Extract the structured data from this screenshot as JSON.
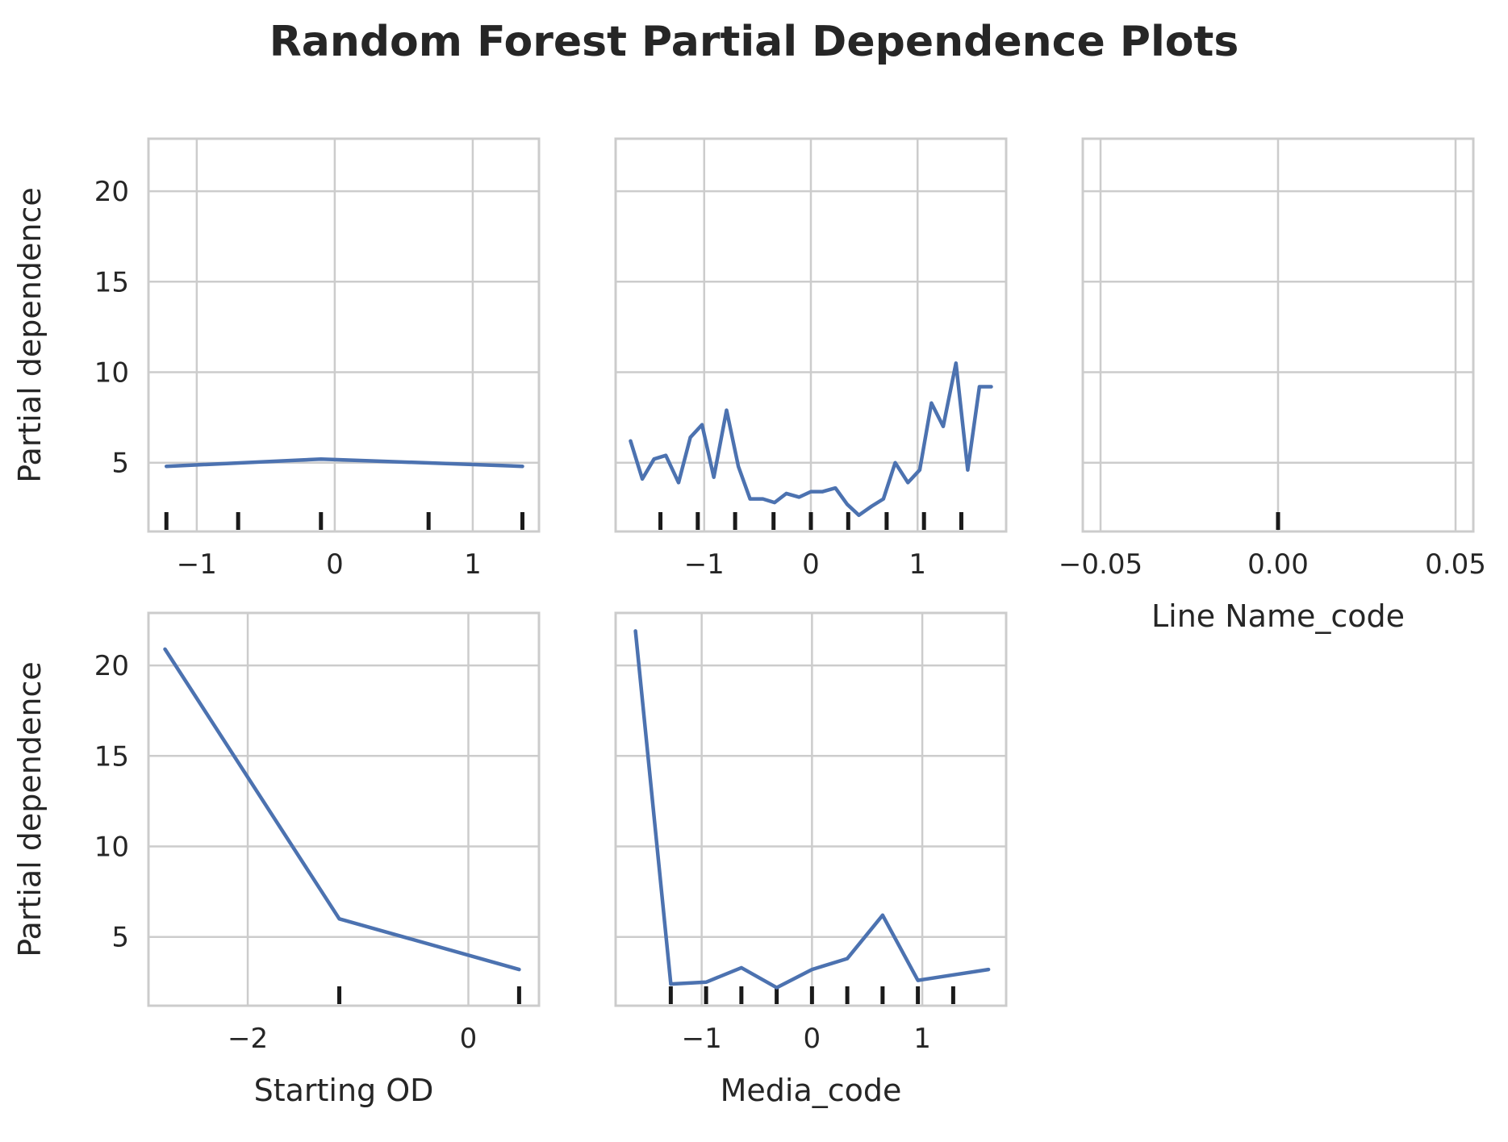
{
  "figure": {
    "title": "Random Forest Partial Dependence Plots"
  },
  "chart_data": [
    {
      "type": "line",
      "panel": "top-left",
      "title": "",
      "xlabel": "",
      "ylabel": "Partial dependence",
      "xlim": [
        -1.35,
        1.48
      ],
      "ylim": [
        1.2,
        22.9
      ],
      "xticks": [
        -1,
        0,
        1
      ],
      "xtick_labels": [
        "−1",
        "0",
        "1"
      ],
      "yticks": [
        5,
        10,
        15,
        20
      ],
      "ytick_labels": [
        "5",
        "10",
        "15",
        "20"
      ],
      "grid": true,
      "color": "#4c72b0",
      "series": [
        {
          "x": [
            -1.22,
            -0.1,
            1.36
          ],
          "y": [
            4.8,
            5.2,
            4.8
          ]
        }
      ],
      "rug": [
        -1.22,
        -0.7,
        -0.1,
        0.68,
        1.36
      ]
    },
    {
      "type": "line",
      "panel": "top-middle",
      "title": "",
      "xlabel": "",
      "ylabel": "",
      "xlim": [
        -1.83,
        1.83
      ],
      "ylim": [
        1.2,
        22.9
      ],
      "xticks": [
        -1,
        0,
        1
      ],
      "xtick_labels": [
        "−1",
        "0",
        "1"
      ],
      "yticks": [
        5,
        10,
        15,
        20
      ],
      "ytick_labels": [],
      "grid": true,
      "color": "#4c72b0",
      "series": [
        {
          "x": [
            -1.69,
            -1.58,
            -1.47,
            -1.36,
            -1.24,
            -1.13,
            -1.02,
            -0.91,
            -0.79,
            -0.68,
            -0.57,
            -0.45,
            -0.34,
            -0.23,
            -0.11,
            0.0,
            0.11,
            0.23,
            0.34,
            0.45,
            0.57,
            0.68,
            0.79,
            0.91,
            1.02,
            1.13,
            1.24,
            1.36,
            1.47,
            1.58,
            1.69
          ],
          "y": [
            6.2,
            4.1,
            5.2,
            5.4,
            3.9,
            6.4,
            7.1,
            4.2,
            7.9,
            4.8,
            3.0,
            3.0,
            2.8,
            3.3,
            3.1,
            3.4,
            3.4,
            3.6,
            2.7,
            2.1,
            2.6,
            3.0,
            5.0,
            3.9,
            4.6,
            8.3,
            7.0,
            10.5,
            4.6,
            9.2,
            9.2
          ]
        }
      ],
      "rug": [
        -1.41,
        -1.06,
        -0.71,
        -0.35,
        0.0,
        0.35,
        0.71,
        1.06,
        1.41
      ]
    },
    {
      "type": "line",
      "panel": "top-right",
      "title": "",
      "xlabel": "Line Name_code",
      "ylabel": "",
      "xlim": [
        -0.055,
        0.055
      ],
      "ylim": [
        1.2,
        22.9
      ],
      "xticks": [
        -0.05,
        0.0,
        0.05
      ],
      "xtick_labels": [
        "−0.05",
        "0.00",
        "0.05"
      ],
      "yticks": [
        5,
        10,
        15,
        20
      ],
      "ytick_labels": [],
      "grid": true,
      "color": "#4c72b0",
      "series": [],
      "rug": [
        0.0
      ]
    },
    {
      "type": "line",
      "panel": "bottom-left",
      "title": "",
      "xlabel": "Starting OD",
      "ylabel": "Partial dependence",
      "xlim": [
        -2.9,
        0.64
      ],
      "ylim": [
        1.2,
        22.9
      ],
      "xticks": [
        -2,
        0
      ],
      "xtick_labels": [
        "−2",
        "0"
      ],
      "yticks": [
        5,
        10,
        15,
        20
      ],
      "ytick_labels": [
        "5",
        "10",
        "15",
        "20"
      ],
      "grid": true,
      "color": "#4c72b0",
      "series": [
        {
          "x": [
            -2.75,
            -1.17,
            0.46
          ],
          "y": [
            20.9,
            6.0,
            3.2
          ]
        }
      ],
      "rug": [
        -1.17,
        0.46
      ]
    },
    {
      "type": "line",
      "panel": "bottom-middle",
      "title": "",
      "xlabel": "Media_code",
      "ylabel": "",
      "xlim": [
        -1.78,
        1.76
      ],
      "ylim": [
        1.2,
        22.9
      ],
      "xticks": [
        -1,
        0,
        1
      ],
      "xtick_labels": [
        "−1",
        "0",
        "1"
      ],
      "yticks": [
        5,
        10,
        15,
        20
      ],
      "ytick_labels": [],
      "grid": true,
      "color": "#4c72b0",
      "series": [
        {
          "x": [
            -1.6,
            -1.28,
            -0.96,
            -0.64,
            -0.32,
            0.0,
            0.32,
            0.64,
            0.96,
            1.28,
            1.6
          ],
          "y": [
            21.9,
            2.4,
            2.5,
            3.3,
            2.2,
            3.2,
            3.8,
            6.2,
            2.6,
            2.9,
            3.2
          ]
        }
      ],
      "rug": [
        -1.28,
        -0.96,
        -0.64,
        -0.32,
        0.0,
        0.32,
        0.64,
        0.96,
        1.28
      ]
    }
  ]
}
